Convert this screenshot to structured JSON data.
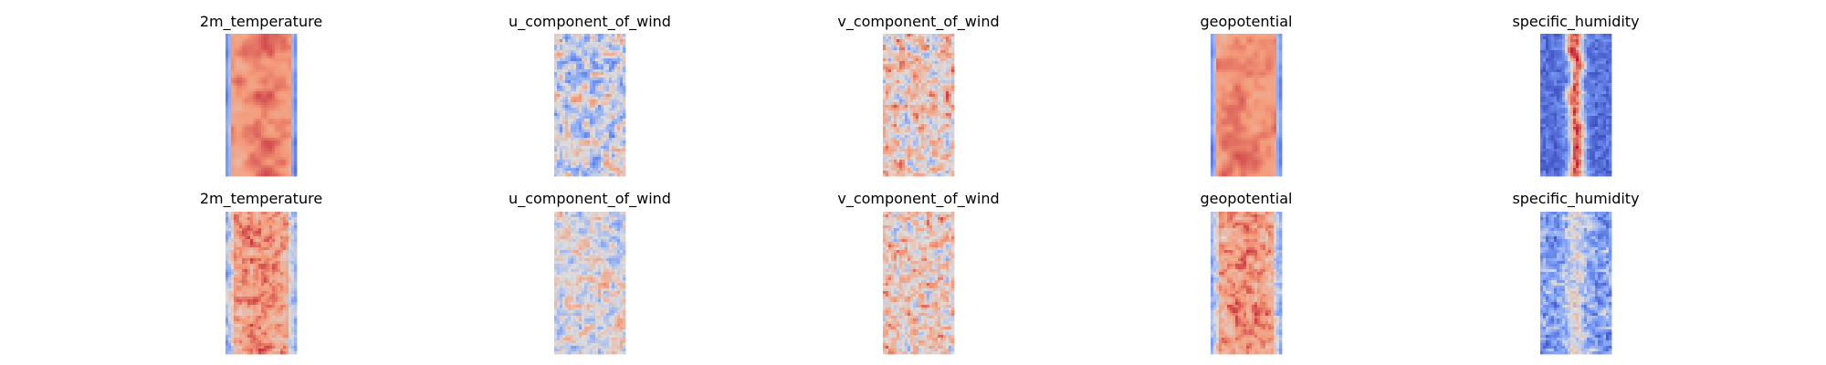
{
  "chart_data": {
    "type": "heatmap",
    "colormap": "coolwarm",
    "colors": {
      "cool": "#3b4cc0",
      "neutral": "#dddddd",
      "warm": "#b40426"
    },
    "axes": "off",
    "panels": [
      {
        "row": 1,
        "title": "2m_temperature",
        "pattern": "broad-warm-band"
      },
      {
        "row": 1,
        "title": "u_component_of_wind",
        "pattern": "mixed-cool"
      },
      {
        "row": 1,
        "title": "v_component_of_wind",
        "pattern": "mixed-warm"
      },
      {
        "row": 1,
        "title": "geopotential",
        "pattern": "broad-warm-band"
      },
      {
        "row": 1,
        "title": "specific_humidity",
        "pattern": "narrow-warm-ridge"
      },
      {
        "row": 2,
        "title": "2m_temperature",
        "pattern": "broad-warm-band-noisy"
      },
      {
        "row": 2,
        "title": "u_component_of_wind",
        "pattern": "mixed-light"
      },
      {
        "row": 2,
        "title": "v_component_of_wind",
        "pattern": "mixed-warm-noisy"
      },
      {
        "row": 2,
        "title": "geopotential",
        "pattern": "broad-warm-band-noisy"
      },
      {
        "row": 2,
        "title": "specific_humidity",
        "pattern": "cool-scattered"
      }
    ]
  }
}
